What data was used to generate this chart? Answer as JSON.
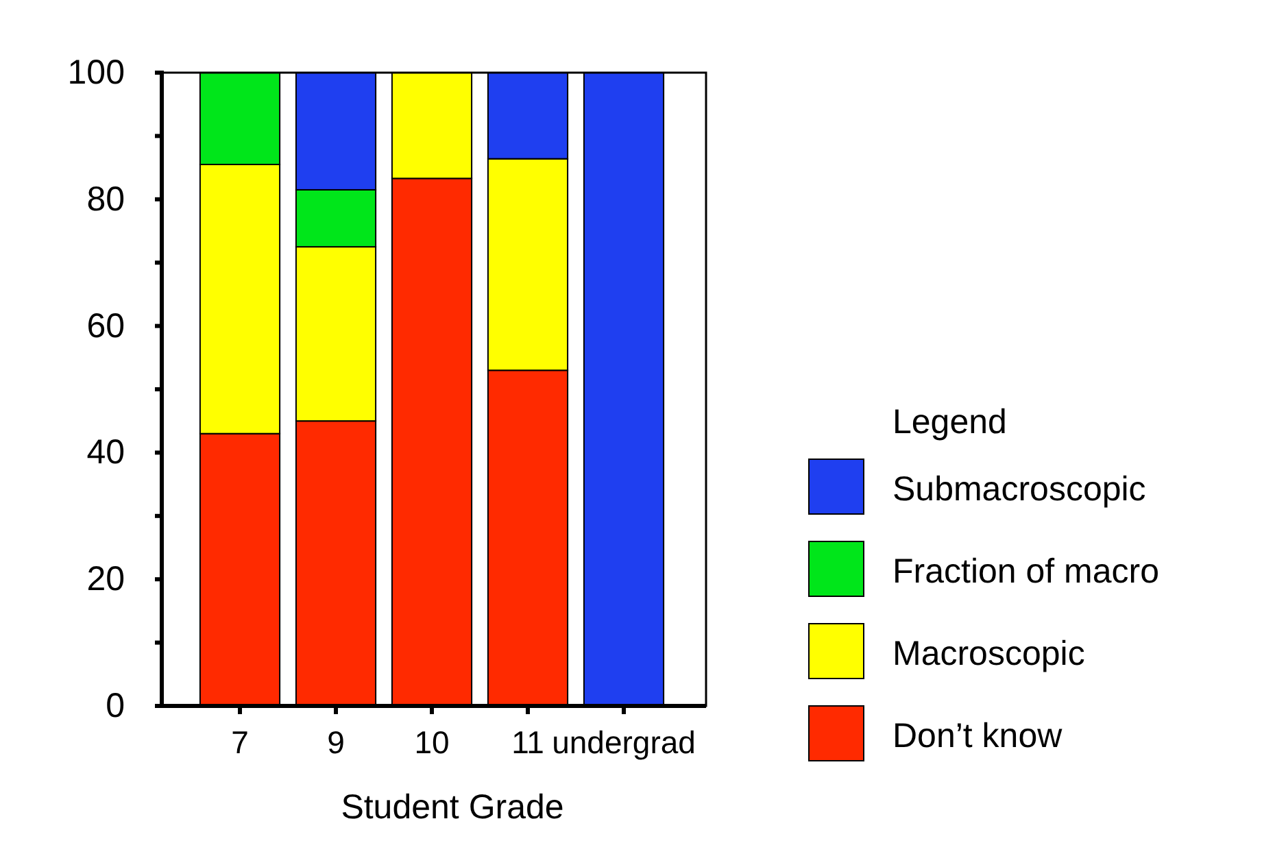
{
  "chart_data": {
    "type": "bar",
    "stacked": true,
    "xlabel": "Student Grade",
    "legend_title": "Legend",
    "legend": "right",
    "grid": false,
    "categories": [
      "7",
      "9",
      "10",
      "11",
      "undergrad"
    ],
    "ylim": [
      0,
      100
    ],
    "yticks": [
      0,
      {
        "value": 10,
        "label": null
      },
      20,
      {
        "value": 30,
        "label": null
      },
      40,
      {
        "value": 50,
        "label": null
      },
      60,
      {
        "value": 70,
        "label": null
      },
      80,
      {
        "value": 90,
        "label": null
      },
      100
    ],
    "series": [
      {
        "name": "Don’t know",
        "color": "#ff2a00",
        "values": [
          43,
          45,
          83.3,
          53,
          0
        ]
      },
      {
        "name": "Macroscopic",
        "color": "#ffff00",
        "values": [
          42.5,
          27.5,
          16.7,
          33.4,
          0
        ]
      },
      {
        "name": "Fraction of macro",
        "color": "#00e61a",
        "values": [
          14.5,
          9,
          0,
          0,
          0
        ]
      },
      {
        "name": "Submacroscopic",
        "color": "#1f3ff0",
        "values": [
          0,
          18.5,
          0,
          13.6,
          100
        ]
      }
    ]
  }
}
